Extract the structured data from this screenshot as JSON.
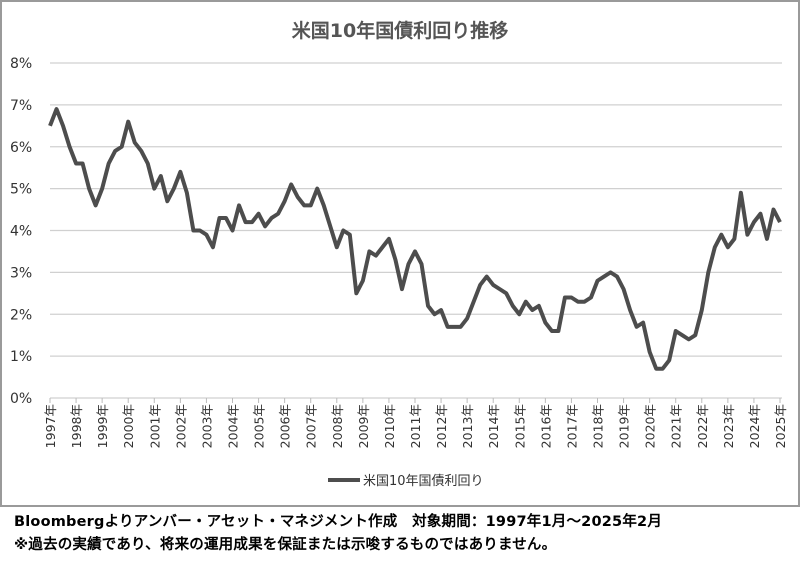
{
  "chart_data": {
    "type": "line",
    "title": "米国10年国債利回り推移",
    "xlabel": "",
    "ylabel": "",
    "ylim": [
      0,
      8
    ],
    "yticks": [
      "0%",
      "1%",
      "2%",
      "3%",
      "4%",
      "5%",
      "6%",
      "7%",
      "8%"
    ],
    "xticks": [
      "1997年",
      "1998年",
      "1999年",
      "2000年",
      "2001年",
      "2002年",
      "2003年",
      "2004年",
      "2005年",
      "2006年",
      "2007年",
      "2008年",
      "2009年",
      "2010年",
      "2011年",
      "2012年",
      "2013年",
      "2014年",
      "2015年",
      "2016年",
      "2017年",
      "2018年",
      "2019年",
      "2020年",
      "2021年",
      "2022年",
      "2023年",
      "2024年",
      "2025年"
    ],
    "grid": true,
    "legend_position": "bottom",
    "series": [
      {
        "name": "米国10年国債利回り",
        "color": "#4d4d4d",
        "x_start_year": 1997,
        "step": "quarter",
        "values": [
          6.5,
          6.9,
          6.5,
          6.0,
          5.6,
          5.6,
          5.0,
          4.6,
          5.0,
          5.6,
          5.9,
          6.0,
          6.6,
          6.1,
          5.9,
          5.6,
          5.0,
          5.3,
          4.7,
          5.0,
          5.4,
          4.9,
          4.0,
          4.0,
          3.9,
          3.6,
          4.3,
          4.3,
          4.0,
          4.6,
          4.2,
          4.2,
          4.4,
          4.1,
          4.3,
          4.4,
          4.7,
          5.1,
          4.8,
          4.6,
          4.6,
          5.0,
          4.6,
          4.1,
          3.6,
          4.0,
          3.9,
          2.5,
          2.8,
          3.5,
          3.4,
          3.6,
          3.8,
          3.3,
          2.6,
          3.2,
          3.5,
          3.2,
          2.2,
          2.0,
          2.1,
          1.7,
          1.7,
          1.7,
          1.9,
          2.3,
          2.7,
          2.9,
          2.7,
          2.6,
          2.5,
          2.2,
          2.0,
          2.3,
          2.1,
          2.2,
          1.8,
          1.6,
          1.6,
          2.4,
          2.4,
          2.3,
          2.3,
          2.4,
          2.8,
          2.9,
          3.0,
          2.9,
          2.6,
          2.1,
          1.7,
          1.8,
          1.1,
          0.7,
          0.7,
          0.9,
          1.6,
          1.5,
          1.4,
          1.5,
          2.1,
          3.0,
          3.6,
          3.9,
          3.6,
          3.8,
          4.9,
          3.9,
          4.2,
          4.4,
          3.8,
          4.5,
          4.2
        ]
      }
    ]
  },
  "footer": {
    "source": "Bloombergよりアンバー・アセット・マネジメント作成　対象期間：1997年1月～2025年2月",
    "disclaimer": "※過去の実績であり、将来の運用成果を保証または示唆するものではありません。"
  }
}
